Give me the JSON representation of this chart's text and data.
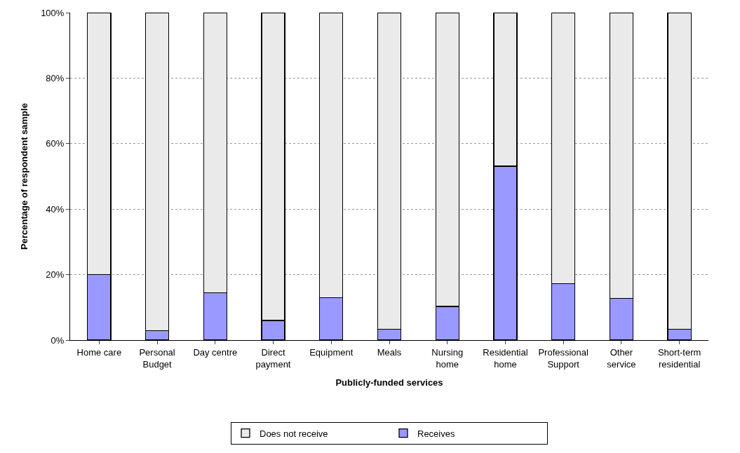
{
  "chart_data": {
    "type": "bar",
    "stacked": true,
    "xlabel": "Publicly-funded services",
    "ylabel": "Percentage of respondent sample",
    "categories": [
      "Home care",
      "Personal\nBudget",
      "Day centre",
      "Direct\npayment",
      "Equipment",
      "Meals",
      "Nursing\nhome",
      "Residential\nhome",
      "Professional\nSupport",
      "Other\nservice",
      "Short-term\nresidential"
    ],
    "series": [
      {
        "name": "Receives",
        "color": "#9999ff",
        "values": [
          20.0,
          2.9,
          14.4,
          6.0,
          13.0,
          3.3,
          10.3,
          53.1,
          17.3,
          12.8,
          3.3
        ]
      },
      {
        "name": "Does not receive",
        "color": "#eaeaea",
        "values": [
          80.0,
          97.1,
          85.6,
          94.0,
          87.0,
          96.7,
          89.7,
          46.9,
          82.7,
          87.2,
          96.7
        ]
      }
    ],
    "ylim": [
      0,
      100
    ],
    "yticks": [
      {
        "value": 0,
        "label": "0%"
      },
      {
        "value": 20,
        "label": "20%"
      },
      {
        "value": 40,
        "label": "40%"
      },
      {
        "value": 60,
        "label": "60%"
      },
      {
        "value": 80,
        "label": "80%"
      },
      {
        "value": 100,
        "label": "100%"
      }
    ],
    "grid": "y",
    "legend": "bottom"
  }
}
